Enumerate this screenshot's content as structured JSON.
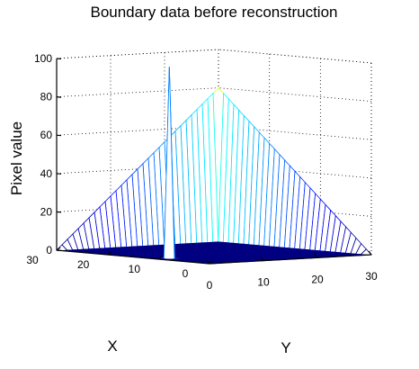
{
  "chart_data": {
    "type": "surface",
    "title": "Boundary data before reconstruction",
    "xlabel": "X",
    "ylabel": "Y",
    "zlabel": "Pixel value",
    "x_range": [
      0,
      30
    ],
    "y_range": [
      0,
      30
    ],
    "z_range": [
      0,
      100
    ],
    "x_ticks": [
      "0",
      "10",
      "20",
      "30"
    ],
    "y_ticks": [
      "0",
      "10",
      "20",
      "30"
    ],
    "z_ticks": [
      "0",
      "20",
      "40",
      "60",
      "80",
      "100"
    ],
    "grid": true,
    "colormap": "jet",
    "grid_size": 30,
    "ridge_x_max": 80,
    "ridge_y_max": 80,
    "spike": {
      "x": 10,
      "y": 2,
      "value": 100
    }
  }
}
